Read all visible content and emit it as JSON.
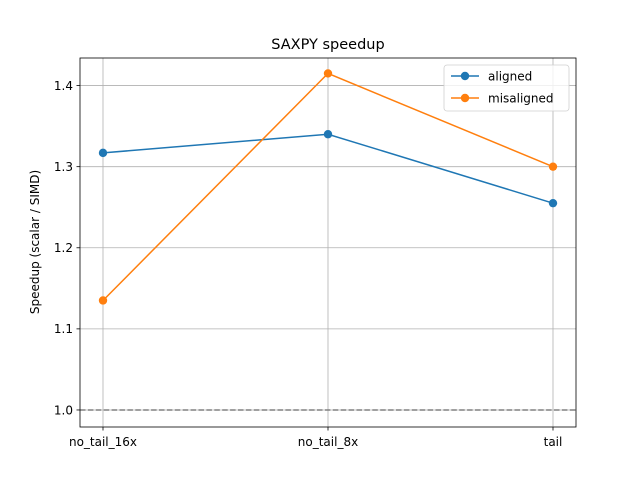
{
  "chart_data": {
    "type": "line",
    "title": "SAXPY speedup",
    "xlabel": "",
    "ylabel": "Speedup (scalar / SIMD)",
    "categories": [
      "no_tail_16x",
      "no_tail_8x",
      "tail"
    ],
    "series": [
      {
        "name": "aligned",
        "color": "#1f77b4",
        "values": [
          1.317,
          1.34,
          1.255
        ]
      },
      {
        "name": "misaligned",
        "color": "#ff7f0e",
        "values": [
          1.135,
          1.415,
          1.3
        ]
      }
    ],
    "ylim": [
      0.979,
      1.434
    ],
    "yticks": [
      "1.0",
      "1.1",
      "1.2",
      "1.3",
      "1.4"
    ],
    "grid": true,
    "reference_line": {
      "y": 1.0,
      "style": "dashed",
      "color": "#808080"
    },
    "legend_position": "top-right"
  }
}
